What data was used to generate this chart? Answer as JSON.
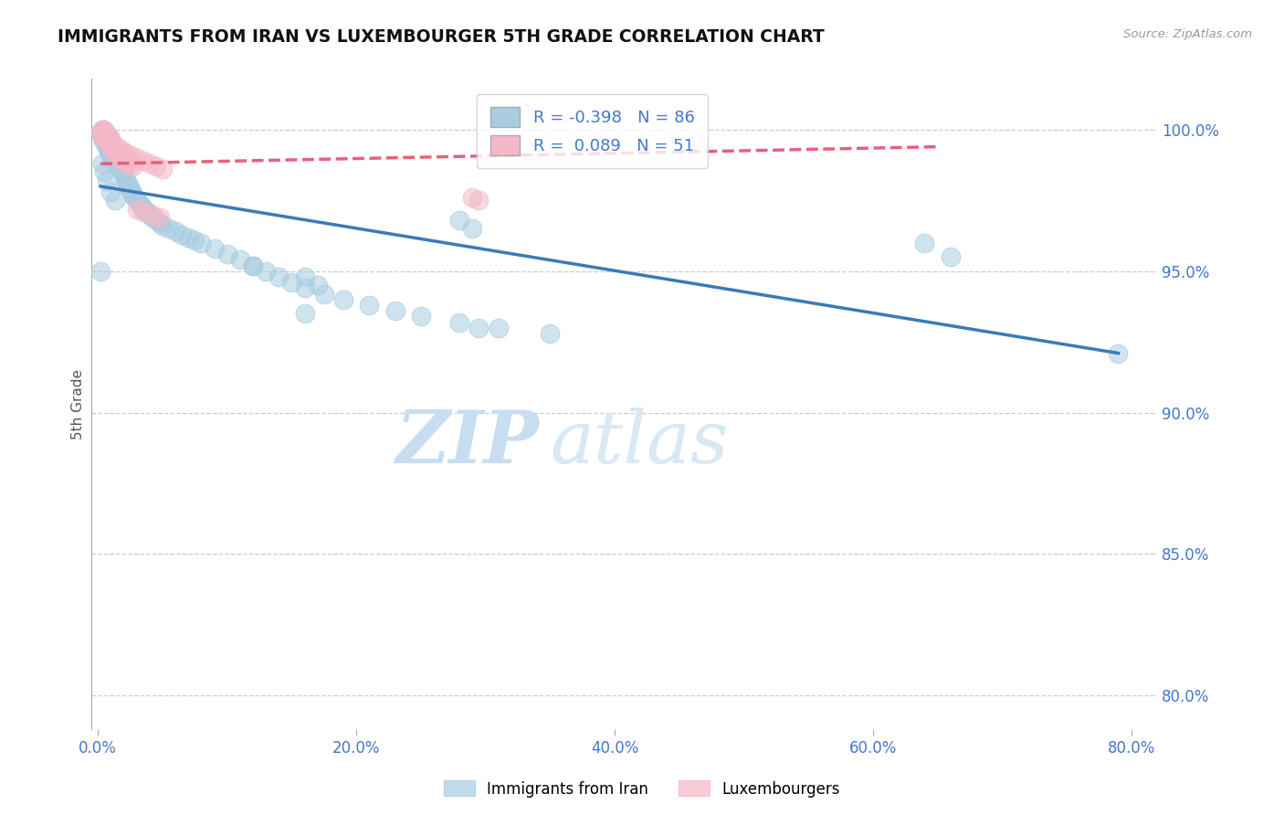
{
  "title": "IMMIGRANTS FROM IRAN VS LUXEMBOURGER 5TH GRADE CORRELATION CHART",
  "source": "Source: ZipAtlas.com",
  "ylabel": "5th Grade",
  "x_tick_labels": [
    "0.0%",
    "20.0%",
    "40.0%",
    "60.0%",
    "80.0%"
  ],
  "x_tick_values": [
    0.0,
    0.2,
    0.4,
    0.6,
    0.8
  ],
  "y_tick_labels": [
    "80.0%",
    "85.0%",
    "90.0%",
    "95.0%",
    "100.0%"
  ],
  "y_tick_values": [
    0.8,
    0.85,
    0.9,
    0.95,
    1.0
  ],
  "xlim": [
    -0.005,
    0.82
  ],
  "ylim": [
    0.788,
    1.018
  ],
  "blue_R": -0.398,
  "blue_N": 86,
  "pink_R": 0.089,
  "pink_N": 51,
  "blue_color": "#a8cce0",
  "pink_color": "#f4b8c8",
  "blue_line_color": "#3a7ab8",
  "pink_line_color": "#e8607a",
  "grid_color": "#cccccc",
  "title_color": "#111111",
  "axis_label_color": "#555555",
  "tick_label_color": "#4477cc",
  "watermark_zip": "ZIP",
  "watermark_atlas": "atlas",
  "watermark_color_zip": "#c8ddf0",
  "watermark_color_atlas": "#d8e8f4",
  "legend_label_blue": "Immigrants from Iran",
  "legend_label_pink": "Luxembourgers",
  "blue_scatter_x": [
    0.002,
    0.003,
    0.003,
    0.004,
    0.004,
    0.005,
    0.005,
    0.006,
    0.006,
    0.007,
    0.007,
    0.008,
    0.008,
    0.009,
    0.009,
    0.01,
    0.01,
    0.011,
    0.011,
    0.012,
    0.012,
    0.013,
    0.014,
    0.015,
    0.015,
    0.016,
    0.017,
    0.018,
    0.019,
    0.02,
    0.021,
    0.022,
    0.023,
    0.024,
    0.025,
    0.026,
    0.027,
    0.028,
    0.03,
    0.032,
    0.034,
    0.036,
    0.038,
    0.04,
    0.042,
    0.045,
    0.048,
    0.05,
    0.055,
    0.06,
    0.065,
    0.07,
    0.075,
    0.08,
    0.09,
    0.1,
    0.11,
    0.12,
    0.13,
    0.14,
    0.15,
    0.16,
    0.175,
    0.19,
    0.21,
    0.23,
    0.25,
    0.28,
    0.31,
    0.35,
    0.003,
    0.005,
    0.007,
    0.01,
    0.013,
    0.12,
    0.16,
    0.28,
    0.29,
    0.64,
    0.002,
    0.16,
    0.295,
    0.66,
    0.17,
    0.79
  ],
  "blue_scatter_y": [
    0.999,
    0.997,
    1.0,
    0.998,
    0.996,
    0.999,
    0.997,
    0.998,
    0.995,
    0.997,
    0.994,
    0.996,
    0.993,
    0.995,
    0.992,
    0.994,
    0.991,
    0.993,
    0.99,
    0.992,
    0.989,
    0.991,
    0.99,
    0.988,
    0.987,
    0.989,
    0.987,
    0.986,
    0.985,
    0.984,
    0.983,
    0.982,
    0.981,
    0.98,
    0.979,
    0.978,
    0.977,
    0.976,
    0.975,
    0.974,
    0.973,
    0.972,
    0.971,
    0.97,
    0.969,
    0.968,
    0.967,
    0.966,
    0.965,
    0.964,
    0.963,
    0.962,
    0.961,
    0.96,
    0.958,
    0.956,
    0.954,
    0.952,
    0.95,
    0.948,
    0.946,
    0.944,
    0.942,
    0.94,
    0.938,
    0.936,
    0.934,
    0.932,
    0.93,
    0.928,
    0.988,
    0.985,
    0.982,
    0.978,
    0.975,
    0.952,
    0.948,
    0.968,
    0.965,
    0.96,
    0.95,
    0.935,
    0.93,
    0.955,
    0.945,
    0.921
  ],
  "pink_scatter_x": [
    0.002,
    0.003,
    0.004,
    0.005,
    0.005,
    0.006,
    0.006,
    0.007,
    0.007,
    0.008,
    0.008,
    0.009,
    0.009,
    0.01,
    0.01,
    0.011,
    0.012,
    0.013,
    0.014,
    0.015,
    0.016,
    0.017,
    0.018,
    0.019,
    0.02,
    0.021,
    0.022,
    0.023,
    0.025,
    0.027,
    0.003,
    0.004,
    0.006,
    0.008,
    0.01,
    0.012,
    0.015,
    0.018,
    0.021,
    0.025,
    0.03,
    0.035,
    0.04,
    0.045,
    0.05,
    0.03,
    0.035,
    0.042,
    0.048,
    0.29,
    0.295
  ],
  "pink_scatter_y": [
    0.999,
    0.998,
    0.999,
    0.997,
    1.0,
    0.998,
    0.999,
    0.997,
    0.998,
    0.996,
    0.997,
    0.995,
    0.996,
    0.994,
    0.997,
    0.995,
    0.994,
    0.993,
    0.992,
    0.991,
    0.992,
    0.991,
    0.99,
    0.989,
    0.99,
    0.989,
    0.988,
    0.989,
    0.988,
    0.987,
    1.0,
    0.999,
    0.998,
    0.997,
    0.996,
    0.995,
    0.994,
    0.993,
    0.992,
    0.991,
    0.99,
    0.989,
    0.988,
    0.987,
    0.986,
    0.972,
    0.971,
    0.97,
    0.969,
    0.976,
    0.975
  ],
  "blue_trend_x": [
    0.002,
    0.79
  ],
  "blue_trend_y": [
    0.98,
    0.921
  ],
  "pink_trend_x": [
    0.002,
    0.65
  ],
  "pink_trend_y": [
    0.988,
    0.994
  ]
}
